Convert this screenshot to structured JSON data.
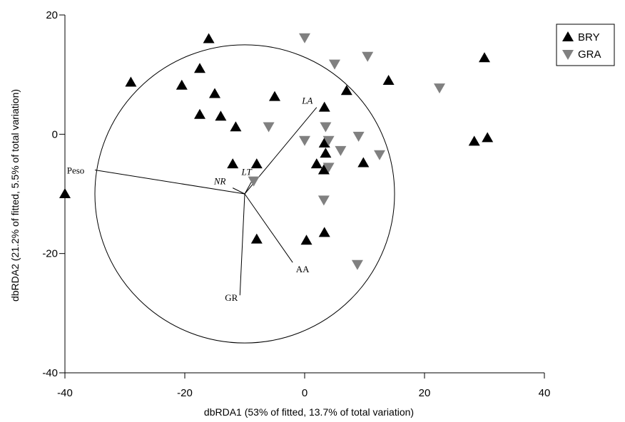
{
  "chart_data": {
    "type": "scatter",
    "xlabel": "dbRDA1  (53% of fitted, 13.7% of total variation)",
    "ylabel": "dbRDA2 (21.2% of fitted, 5.5% of total variation)",
    "xlim": [
      -40,
      40
    ],
    "ylim": [
      -40,
      20
    ],
    "xticks": [
      -40,
      -20,
      0,
      20,
      40
    ],
    "yticks": [
      -40,
      -20,
      0,
      20
    ],
    "grid": false,
    "legend_position": "top-right",
    "series": [
      {
        "name": "BRY",
        "marker": "triangle-up",
        "color": "#000000",
        "points": [
          [
            -16,
            16
          ],
          [
            -29,
            8.7
          ],
          [
            -20.5,
            8.2
          ],
          [
            -17.5,
            11
          ],
          [
            -15,
            6.8
          ],
          [
            -17.5,
            3.3
          ],
          [
            -14,
            3
          ],
          [
            -11.5,
            1.2
          ],
          [
            -5,
            6.3
          ],
          [
            3.3,
            4.5
          ],
          [
            7,
            7.3
          ],
          [
            14,
            9
          ],
          [
            30,
            12.8
          ],
          [
            28.3,
            -1.2
          ],
          [
            30.5,
            -0.6
          ],
          [
            3.3,
            -1.5
          ],
          [
            3.5,
            -3.2
          ],
          [
            2,
            -5
          ],
          [
            3.2,
            -6
          ],
          [
            9.8,
            -4.8
          ],
          [
            -12,
            -5
          ],
          [
            -8,
            -5
          ],
          [
            -40,
            -10
          ],
          [
            -8,
            -17.6
          ],
          [
            0.3,
            -17.8
          ],
          [
            3.3,
            -16.5
          ]
        ]
      },
      {
        "name": "GRA",
        "marker": "triangle-down",
        "color": "#808080",
        "points": [
          [
            0,
            16.2
          ],
          [
            5,
            11.8
          ],
          [
            10.5,
            13.1
          ],
          [
            22.5,
            7.8
          ],
          [
            -6,
            1.3
          ],
          [
            0,
            -1
          ],
          [
            3.5,
            1.3
          ],
          [
            4,
            -1
          ],
          [
            9,
            -0.3
          ],
          [
            12.5,
            -3.4
          ],
          [
            6,
            -2.7
          ],
          [
            4,
            -5.5
          ],
          [
            -8.5,
            -7.8
          ],
          [
            3.2,
            -11
          ],
          [
            8.8,
            -21.8
          ]
        ]
      }
    ],
    "circle": {
      "center": [
        -10,
        -10
      ],
      "radius": 25
    },
    "vectors": {
      "origin": [
        -10,
        -10
      ],
      "items": [
        {
          "label": "LA",
          "italic": true,
          "end": [
            2,
            4.5
          ]
        },
        {
          "label": "LT",
          "italic": true,
          "end": [
            -8.5,
            -7.3
          ]
        },
        {
          "label": "NR",
          "italic": true,
          "end": [
            -12,
            -9
          ]
        },
        {
          "label": "Peso",
          "italic": false,
          "end": [
            -35,
            -6
          ]
        },
        {
          "label": "AA",
          "italic": false,
          "end": [
            -2,
            -21.5
          ]
        },
        {
          "label": "GR",
          "italic": false,
          "end": [
            -10.8,
            -27
          ]
        }
      ]
    }
  }
}
